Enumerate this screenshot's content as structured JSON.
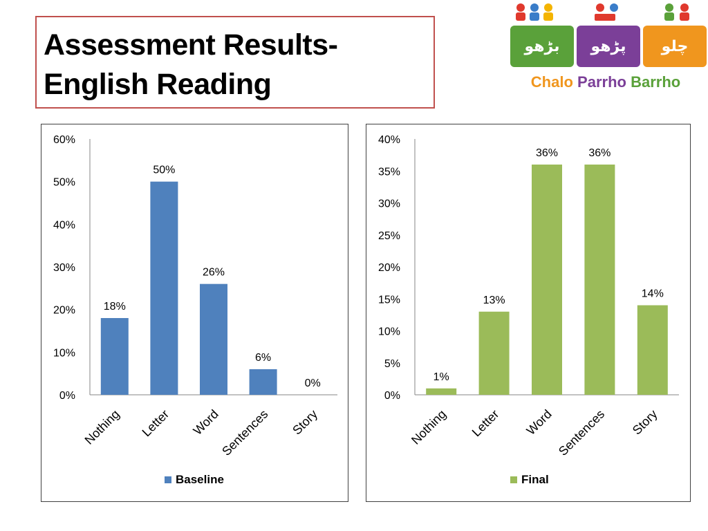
{
  "title": {
    "line1": "Assessment Results-",
    "line2": "English Reading",
    "border_color": "#c0504d"
  },
  "logo": {
    "tiles": [
      {
        "text": "بڑھو",
        "color": "#5aa13a"
      },
      {
        "text": "پڑھو",
        "color": "#7b3f98"
      },
      {
        "text": "چلو",
        "color": "#f0961e"
      }
    ],
    "caption": [
      {
        "text": "Chalo",
        "color": "#f0961e"
      },
      {
        "text": "Parrho",
        "color": "#7b3f98"
      },
      {
        "text": "Barrho",
        "color": "#5aa13a"
      }
    ]
  },
  "chart_data": [
    {
      "type": "bar",
      "categories": [
        "Nothing",
        "Letter",
        "Word",
        "Sentences",
        "Story"
      ],
      "series": [
        {
          "name": "Baseline",
          "values": [
            18,
            50,
            26,
            6,
            0
          ],
          "color": "#4f81bd"
        }
      ],
      "data_labels": [
        "18%",
        "50%",
        "26%",
        "6%",
        "0%"
      ],
      "ylim": [
        0,
        60
      ],
      "yticks": [
        0,
        10,
        20,
        30,
        40,
        50,
        60
      ],
      "ytick_labels": [
        "0%",
        "10%",
        "20%",
        "30%",
        "40%",
        "50%",
        "60%"
      ],
      "title": "",
      "xlabel": "",
      "ylabel": "",
      "grid": false,
      "legend": "bottom"
    },
    {
      "type": "bar",
      "categories": [
        "Nothing",
        "Letter",
        "Word",
        "Sentences",
        "Story"
      ],
      "series": [
        {
          "name": "Final",
          "values": [
            1,
            13,
            36,
            36,
            14
          ],
          "color": "#9bbb59"
        }
      ],
      "data_labels": [
        "1%",
        "13%",
        "36%",
        "36%",
        "14%"
      ],
      "ylim": [
        0,
        40
      ],
      "yticks": [
        0,
        5,
        10,
        15,
        20,
        25,
        30,
        35,
        40
      ],
      "ytick_labels": [
        "0%",
        "5%",
        "10%",
        "15%",
        "20%",
        "25%",
        "30%",
        "35%",
        "40%"
      ],
      "title": "",
      "xlabel": "",
      "ylabel": "",
      "grid": false,
      "legend": "bottom"
    }
  ]
}
